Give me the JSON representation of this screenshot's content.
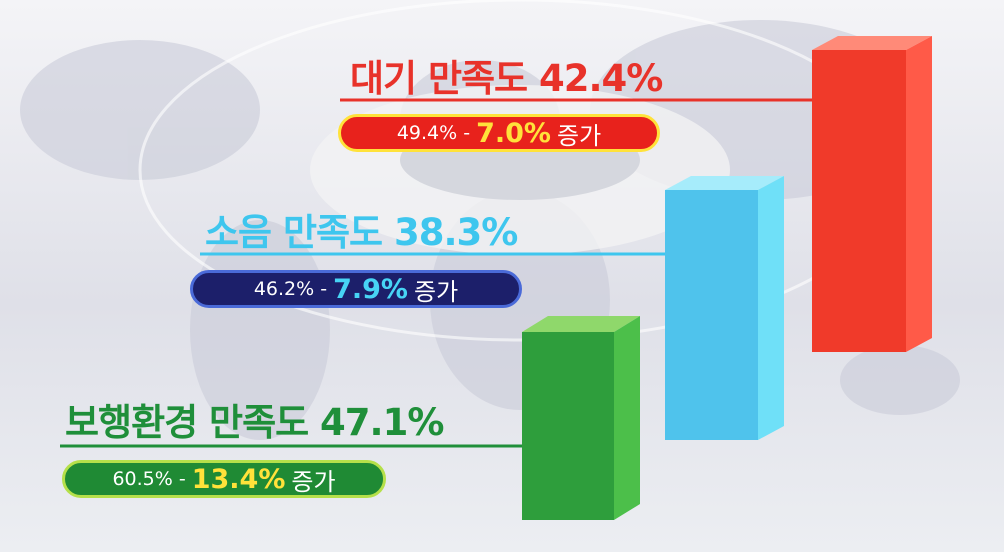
{
  "items": [
    {
      "title": "대기 만족도 42.4%",
      "before": "49.4% -",
      "change": "7.0%",
      "suffix": "증가"
    },
    {
      "title": "소음 만족도 38.3%",
      "before": "46.2% -",
      "change": "7.9%",
      "suffix": "증가"
    },
    {
      "title": "보행환경 만족도 47.1%",
      "before": "60.5% -",
      "change": "13.4%",
      "suffix": "증가"
    }
  ]
}
